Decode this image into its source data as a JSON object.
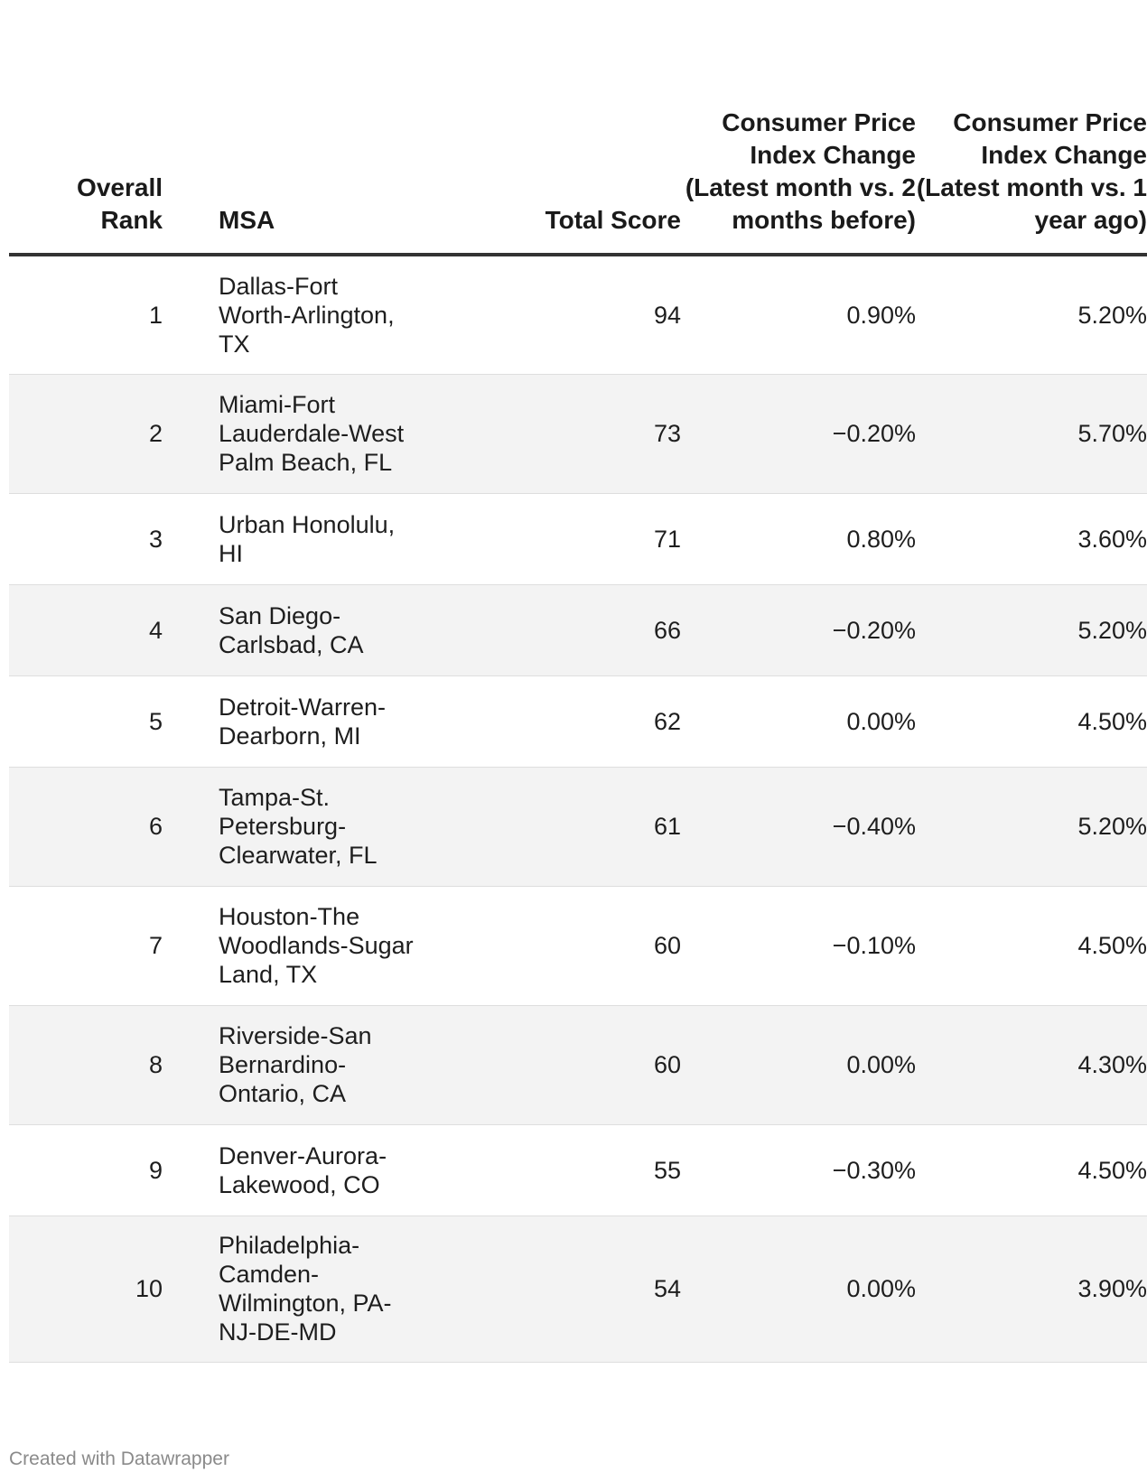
{
  "chart_data": {
    "type": "table",
    "columns": [
      "Overall Rank",
      "MSA",
      "Total Score",
      "Consumer Price Index Change (Latest month vs. 2 months before)",
      "Consumer Price Index Change (Latest month vs. 1 year ago)"
    ],
    "rows": [
      {
        "rank": "1",
        "msa": "Dallas-Fort Worth-Arlington, TX",
        "score": "94",
        "cpi_2m": "0.90%",
        "cpi_1y": "5.20%"
      },
      {
        "rank": "2",
        "msa": "Miami-Fort Lauderdale-West Palm Beach, FL",
        "score": "73",
        "cpi_2m": "−0.20%",
        "cpi_1y": "5.70%"
      },
      {
        "rank": "3",
        "msa": "Urban Honolulu, HI",
        "score": "71",
        "cpi_2m": "0.80%",
        "cpi_1y": "3.60%"
      },
      {
        "rank": "4",
        "msa": "San Diego-Carlsbad, CA",
        "score": "66",
        "cpi_2m": "−0.20%",
        "cpi_1y": "5.20%"
      },
      {
        "rank": "5",
        "msa": "Detroit-Warren-Dearborn, MI",
        "score": "62",
        "cpi_2m": "0.00%",
        "cpi_1y": "4.50%"
      },
      {
        "rank": "6",
        "msa": "Tampa-St. Petersburg-Clearwater, FL",
        "score": "61",
        "cpi_2m": "−0.40%",
        "cpi_1y": "5.20%"
      },
      {
        "rank": "7",
        "msa": "Houston-The Woodlands-Sugar Land, TX",
        "score": "60",
        "cpi_2m": "−0.10%",
        "cpi_1y": "4.50%"
      },
      {
        "rank": "8",
        "msa": "Riverside-San Bernardino-Ontario, CA",
        "score": "60",
        "cpi_2m": "0.00%",
        "cpi_1y": "4.30%"
      },
      {
        "rank": "9",
        "msa": "Denver-Aurora-Lakewood, CO",
        "score": "55",
        "cpi_2m": "−0.30%",
        "cpi_1y": "4.50%"
      },
      {
        "rank": "10",
        "msa": "Philadelphia-Camden-Wilmington, PA-NJ-DE-MD",
        "score": "54",
        "cpi_2m": "0.00%",
        "cpi_1y": "3.90%"
      }
    ]
  },
  "footer": {
    "credit": "Created with Datawrapper"
  },
  "colors": {
    "header_rule": "#333333",
    "stripe": "#f3f3f3",
    "footer_text": "#8a8a8a"
  }
}
